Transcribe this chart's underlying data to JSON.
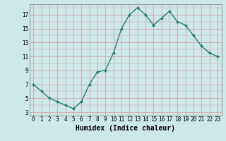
{
  "x": [
    0,
    1,
    2,
    3,
    4,
    5,
    6,
    7,
    8,
    9,
    10,
    11,
    12,
    13,
    14,
    15,
    16,
    17,
    18,
    19,
    20,
    21,
    22,
    23
  ],
  "y": [
    7,
    6,
    5,
    4.5,
    4,
    3.5,
    4.5,
    7,
    8.8,
    9,
    11.5,
    15,
    17,
    18,
    17,
    15.5,
    16.5,
    17.5,
    16,
    15.5,
    14,
    12.5,
    11.5,
    11
  ],
  "line_color": "#2e7d6e",
  "marker": "D",
  "marker_size": 2,
  "bg_color": "#cce8e8",
  "xlabel": "Humidex (Indice chaleur)",
  "xlabel_fontsize": 7,
  "yticks": [
    3,
    5,
    7,
    9,
    11,
    13,
    15,
    17
  ],
  "xticks": [
    0,
    1,
    2,
    3,
    4,
    5,
    6,
    7,
    8,
    9,
    10,
    11,
    12,
    13,
    14,
    15,
    16,
    17,
    18,
    19,
    20,
    21,
    22,
    23
  ],
  "xlim": [
    -0.5,
    23.5
  ],
  "ylim": [
    2.5,
    18.5
  ],
  "tick_fontsize": 5.5,
  "linewidth": 1.0,
  "grid_major_color": "#cc9999",
  "grid_minor_color": "#cc9999",
  "spine_color": "#888888"
}
